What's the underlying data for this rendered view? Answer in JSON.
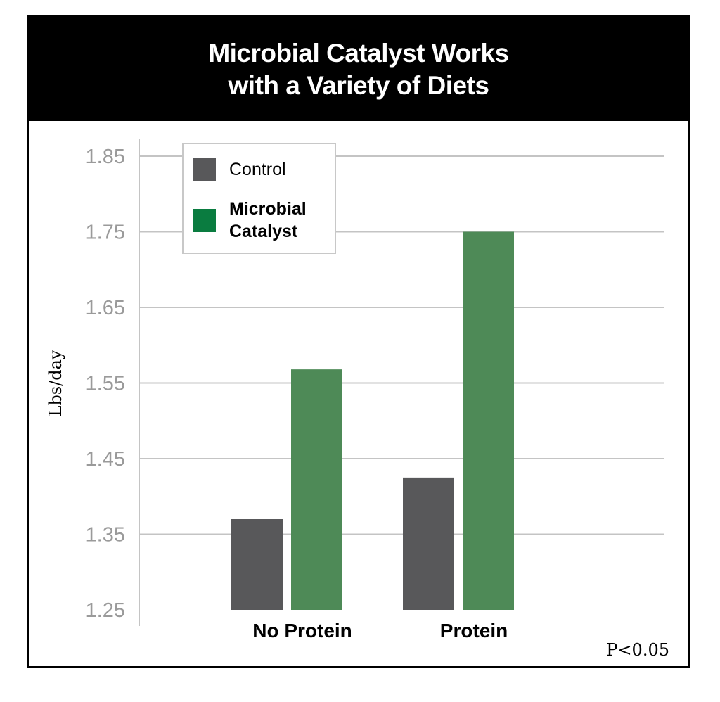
{
  "chart_data": {
    "type": "bar",
    "title": [
      "Microbial Catalyst Works",
      "with a Variety of Diets"
    ],
    "ylabel": "Lbs/day",
    "xlabel": "",
    "categories": [
      "No Protein",
      "Protein"
    ],
    "series": [
      {
        "name": "Control",
        "color": "#58585a",
        "values": [
          1.37,
          1.425
        ]
      },
      {
        "name": "Microbial Catalyst",
        "color": "#4e8a57",
        "values": [
          1.568,
          1.75
        ]
      }
    ],
    "legend_entries": [
      {
        "label": "Control",
        "color": "#58585a",
        "bold": false
      },
      {
        "label": "Microbial Catalyst",
        "color": "#0a7c40",
        "bold": true
      }
    ],
    "legend_position": "top-left",
    "ylim": [
      1.25,
      1.85
    ],
    "yticks": [
      "1.85",
      "1.75",
      "1.65",
      "1.55",
      "1.45",
      "1.35",
      "1.25"
    ],
    "grid": true,
    "annotation": "P<0.05"
  }
}
